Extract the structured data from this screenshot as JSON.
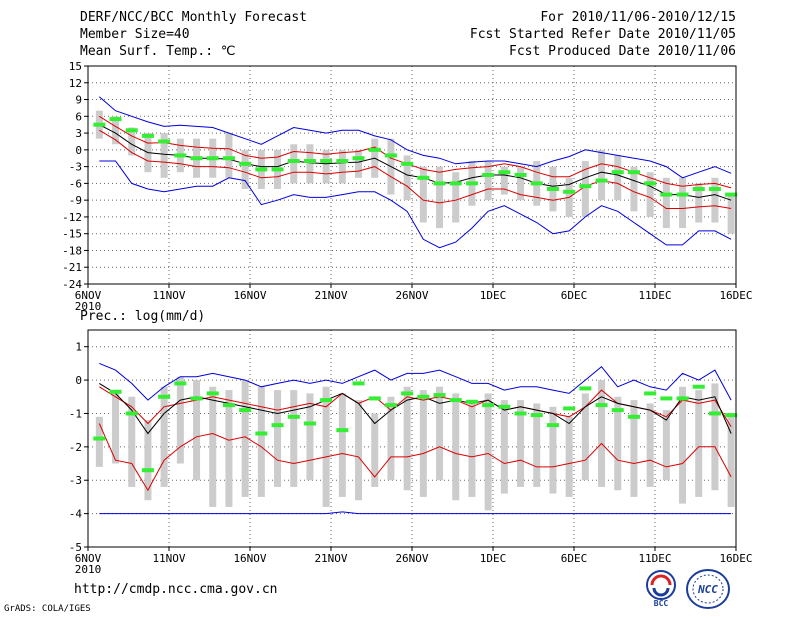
{
  "header": {
    "title": "DERF/NCC/BCC Monthly Forecast",
    "member_size": "Member Size=40",
    "variable": "Mean Surf. Temp.: ℃",
    "period": "For 2010/11/06-2010/12/15",
    "started": "Fcst Started Refer Date 2010/11/05",
    "produced": "Fcst Produced Date 2010/11/06"
  },
  "footer": {
    "url": "http://cmdp.ncc.cma.gov.cn",
    "grads": "GrADS: COLA/IGES",
    "logo_left_text": "BCC",
    "logo_right_text": "NCC"
  },
  "colors": {
    "envelope": "#0000dd",
    "spread": "#dd0000",
    "mean": "#000000",
    "box": "#cccccc",
    "median": "#33ee33",
    "grid": "#666666"
  },
  "chart_data": [
    {
      "type": "line",
      "title": "Mean Surf. Temp.: ℃",
      "ylim": [
        -24,
        15
      ],
      "yticks": [
        15,
        12,
        9,
        6,
        3,
        0,
        -3,
        -6,
        -9,
        -12,
        -15,
        -18,
        -21,
        -24
      ],
      "xlim": [
        0,
        40
      ],
      "xticks": [
        {
          "x": 0,
          "label": "6NOV",
          "sub": "2010"
        },
        {
          "x": 5,
          "label": "11NOV"
        },
        {
          "x": 10,
          "label": "16NOV"
        },
        {
          "x": 15,
          "label": "21NOV"
        },
        {
          "x": 20,
          "label": "26NOV"
        },
        {
          "x": 25,
          "label": "1DEC"
        },
        {
          "x": 30,
          "label": "6DEC"
        },
        {
          "x": 35,
          "label": "11DEC"
        },
        {
          "x": 40,
          "label": "16DEC"
        }
      ],
      "x": [
        0,
        1,
        2,
        3,
        4,
        5,
        6,
        7,
        8,
        9,
        10,
        11,
        12,
        13,
        14,
        15,
        16,
        17,
        18,
        19,
        20,
        21,
        22,
        23,
        24,
        25,
        26,
        27,
        28,
        29,
        30,
        31,
        32,
        33,
        34,
        35,
        36,
        37,
        38,
        39
      ],
      "series": [
        {
          "name": "max",
          "color": "#0000dd",
          "values": [
            9.5,
            7,
            6,
            5,
            4.2,
            4.4,
            4.2,
            4,
            3,
            2,
            1,
            2.5,
            4,
            3.5,
            3,
            3.5,
            3.5,
            2.5,
            1.8,
            0,
            -1,
            -1.5,
            -2.5,
            -2.2,
            -2,
            -2,
            -2.5,
            -3,
            -2,
            -1.2,
            0,
            -0.5,
            -1,
            -1.5,
            -2,
            -3,
            -5,
            -4,
            -3,
            -4.2
          ]
        },
        {
          "name": "spread_upper",
          "color": "#dd0000",
          "values": [
            6,
            4.2,
            2.5,
            1.2,
            1.3,
            0.8,
            0.5,
            0.3,
            0.2,
            -1,
            -1.5,
            -1.3,
            -0.3,
            -0.5,
            -0.8,
            -0.5,
            -0.3,
            0.5,
            -1.5,
            -2.5,
            -3.5,
            -4,
            -3.5,
            -3.2,
            -3,
            -2.5,
            -3,
            -4,
            -4.8,
            -4.8,
            -3.5,
            -2.5,
            -3,
            -4,
            -5,
            -6,
            -6.5,
            -6.2,
            -6,
            -6.8
          ]
        },
        {
          "name": "mean",
          "color": "#000000",
          "values": [
            4.5,
            3,
            1,
            -0.5,
            -0.8,
            -1,
            -1.5,
            -1.5,
            -1.7,
            -2.5,
            -3,
            -3,
            -2,
            -2.3,
            -2.5,
            -2.3,
            -2.2,
            -1.5,
            -3,
            -4.5,
            -5,
            -6,
            -5.8,
            -5,
            -4.5,
            -4.5,
            -5,
            -6,
            -6.5,
            -6.2,
            -5,
            -4,
            -4.5,
            -5.5,
            -6.5,
            -8,
            -8,
            -8.5,
            -8,
            -9
          ]
        },
        {
          "name": "spread_lower",
          "color": "#dd0000",
          "values": [
            3.5,
            1.8,
            -0.5,
            -2,
            -2.2,
            -2.5,
            -3,
            -3,
            -3.2,
            -4,
            -5,
            -4.8,
            -4,
            -4,
            -4.3,
            -4,
            -3.8,
            -3,
            -4.8,
            -6.5,
            -9,
            -9.5,
            -9,
            -8,
            -7,
            -7,
            -8,
            -8.5,
            -9,
            -8.5,
            -6.5,
            -5.5,
            -6,
            -7.5,
            -8.5,
            -10.5,
            -10.5,
            -10.2,
            -10,
            -10.5
          ]
        },
        {
          "name": "min",
          "color": "#0000dd",
          "values": [
            -2,
            -2,
            -6,
            -7,
            -7.5,
            -7,
            -6.5,
            -6.5,
            -5,
            -5.5,
            -9.8,
            -9,
            -8,
            -8.5,
            -8.5,
            -8,
            -7.5,
            -7.5,
            -9,
            -11,
            -16,
            -17.5,
            -16.5,
            -14,
            -11,
            -10,
            -11.5,
            -13,
            -15,
            -14.5,
            -12,
            -10,
            -11,
            -13,
            -15,
            -17,
            -17,
            -14.5,
            -14.5,
            -16
          ]
        }
      ],
      "boxes": [
        [
          2,
          7
        ],
        [
          1,
          6
        ],
        [
          -1,
          4
        ],
        [
          -4,
          3
        ],
        [
          -5,
          3
        ],
        [
          -4,
          2
        ],
        [
          -5,
          2
        ],
        [
          -5,
          2
        ],
        [
          -5,
          3
        ],
        [
          -7,
          0
        ],
        [
          -7,
          0
        ],
        [
          -7,
          0
        ],
        [
          -6,
          1
        ],
        [
          -6,
          1
        ],
        [
          -6,
          0
        ],
        [
          -6,
          0
        ],
        [
          -5,
          0
        ],
        [
          -5,
          2
        ],
        [
          -8,
          2
        ],
        [
          -9,
          -1
        ],
        [
          -13,
          -3
        ],
        [
          -14,
          -3
        ],
        [
          -13,
          -4
        ],
        [
          -10,
          -2
        ],
        [
          -9,
          -2
        ],
        [
          -8,
          -3
        ],
        [
          -9,
          -3
        ],
        [
          -10,
          -2
        ],
        [
          -11,
          -3
        ],
        [
          -12,
          -5
        ],
        [
          -12,
          -2
        ],
        [
          -9,
          0
        ],
        [
          -9,
          -1
        ],
        [
          -11,
          -3
        ],
        [
          -12,
          -4
        ],
        [
          -14,
          -5
        ],
        [
          -14,
          -5
        ],
        [
          -13,
          -6
        ],
        [
          -13,
          -5
        ],
        [
          -15,
          -8
        ]
      ],
      "medians": [
        4.5,
        5.5,
        3.5,
        2.5,
        1.5,
        -1,
        -1.5,
        -1.5,
        -1.5,
        -2.5,
        -3.5,
        -3.5,
        -2,
        -2,
        -2,
        -2,
        -1.5,
        0,
        -1,
        -2.5,
        -5,
        -6,
        -6,
        -6,
        -4.5,
        -4,
        -4.5,
        -6,
        -7,
        -7.5,
        -6.5,
        -5.5,
        -4,
        -4,
        -6,
        -8,
        -8,
        -7,
        -7,
        -8
      ]
    },
    {
      "type": "line",
      "title": "Prec.: log(mm/d)",
      "ylim": [
        -5,
        1.5
      ],
      "yticks": [
        1,
        0,
        -1,
        -2,
        -3,
        -4,
        -5
      ],
      "xlim": [
        0,
        40
      ],
      "xticks": [
        {
          "x": 0,
          "label": "6NOV",
          "sub": "2010"
        },
        {
          "x": 5,
          "label": "11NOV"
        },
        {
          "x": 10,
          "label": "16NOV"
        },
        {
          "x": 15,
          "label": "21NOV"
        },
        {
          "x": 20,
          "label": "26NOV"
        },
        {
          "x": 25,
          "label": "1DEC"
        },
        {
          "x": 30,
          "label": "6DEC"
        },
        {
          "x": 35,
          "label": "11DEC"
        },
        {
          "x": 40,
          "label": "16DEC"
        }
      ],
      "x": [
        0,
        1,
        2,
        3,
        4,
        5,
        6,
        7,
        8,
        9,
        10,
        11,
        12,
        13,
        14,
        15,
        16,
        17,
        18,
        19,
        20,
        21,
        22,
        23,
        24,
        25,
        26,
        27,
        28,
        29,
        30,
        31,
        32,
        33,
        34,
        35,
        36,
        37,
        38,
        39
      ],
      "series": [
        {
          "name": "max",
          "color": "#0000dd",
          "values": [
            0.5,
            0.3,
            -0.1,
            -0.6,
            -0.2,
            0.1,
            0.1,
            0.2,
            0.1,
            0,
            -0.2,
            -0.1,
            0,
            -0.1,
            0,
            -0.1,
            0.1,
            0.3,
            0,
            0.2,
            0.2,
            0.3,
            0.1,
            -0.1,
            -0.1,
            -0.3,
            -0.2,
            -0.2,
            -0.3,
            -0.4,
            0,
            0.4,
            -0.2,
            0,
            -0.2,
            -0.3,
            0.2,
            0,
            0.3,
            -0.6
          ]
        },
        {
          "name": "spread_upper",
          "color": "#dd0000",
          "values": [
            -0.2,
            -0.5,
            -0.8,
            -1.3,
            -0.8,
            -0.7,
            -0.6,
            -0.5,
            -0.6,
            -0.7,
            -0.8,
            -0.9,
            -0.8,
            -0.7,
            -0.8,
            -0.4,
            -0.7,
            -0.5,
            -0.9,
            -0.5,
            -0.6,
            -0.5,
            -0.6,
            -0.8,
            -0.6,
            -0.9,
            -0.8,
            -0.9,
            -1,
            -1.1,
            -0.8,
            -0.3,
            -0.7,
            -0.8,
            -0.9,
            -1.1,
            -0.6,
            -0.7,
            -0.6,
            -1.4
          ]
        },
        {
          "name": "mean",
          "color": "#000000",
          "values": [
            -0.1,
            -0.4,
            -0.9,
            -1.6,
            -1,
            -0.6,
            -0.5,
            -0.6,
            -0.7,
            -0.8,
            -0.9,
            -1,
            -0.9,
            -0.8,
            -0.6,
            -0.4,
            -0.7,
            -1.3,
            -0.9,
            -0.6,
            -0.5,
            -0.7,
            -0.6,
            -0.7,
            -0.6,
            -0.9,
            -0.8,
            -0.9,
            -1,
            -1.3,
            -0.8,
            -0.5,
            -0.7,
            -0.8,
            -0.9,
            -1.2,
            -0.5,
            -0.6,
            -0.5,
            -1.6
          ]
        },
        {
          "name": "spread_lower",
          "color": "#dd0000",
          "values": [
            -1.3,
            -2.4,
            -2.5,
            -3.3,
            -2.4,
            -2,
            -1.7,
            -1.6,
            -1.8,
            -1.7,
            -2,
            -2.4,
            -2.5,
            -2.4,
            -2.3,
            -2.2,
            -2.3,
            -2.9,
            -2.3,
            -2.3,
            -2.2,
            -2,
            -2.2,
            -2.3,
            -2.2,
            -2.5,
            -2.4,
            -2.6,
            -2.6,
            -2.5,
            -2.4,
            -1.9,
            -2.4,
            -2.5,
            -2.4,
            -2.6,
            -2.5,
            -2,
            -2,
            -2.9
          ]
        },
        {
          "name": "min",
          "color": "#0000dd",
          "values": [
            -4,
            -4,
            -4,
            -4,
            -4,
            -4,
            -4,
            -4,
            -4,
            -4,
            -4,
            -4,
            -4,
            -4,
            -4,
            -3.95,
            -4,
            -4,
            -4,
            -4,
            -4,
            -4,
            -4,
            -4,
            -4,
            -4,
            -4,
            -4,
            -4,
            -4,
            -4,
            -4,
            -4,
            -4,
            -4,
            -4,
            -4,
            -4,
            -4,
            -4
          ]
        }
      ],
      "boxes": [
        [
          -2.6,
          -1.1
        ],
        [
          -2.5,
          -0.4
        ],
        [
          -3.2,
          -0.5
        ],
        [
          -3.6,
          -1.2
        ],
        [
          -3.2,
          -0.2
        ],
        [
          -2.5,
          0.1
        ],
        [
          -3,
          0
        ],
        [
          -3.8,
          -0.2
        ],
        [
          -3.8,
          -0.3
        ],
        [
          -3.5,
          0
        ],
        [
          -3.5,
          -0.2
        ],
        [
          -3.2,
          -0.3
        ],
        [
          -3.2,
          -0.3
        ],
        [
          -3,
          -0.4
        ],
        [
          -3.8,
          -0.2
        ],
        [
          -3.5,
          -0.4
        ],
        [
          -3.6,
          -0.6
        ],
        [
          -3.2,
          -1
        ],
        [
          -3,
          -0.5
        ],
        [
          -3.3,
          -0.2
        ],
        [
          -3.5,
          -0.3
        ],
        [
          -3,
          -0.2
        ],
        [
          -3.6,
          -0.4
        ],
        [
          -3.5,
          -0.6
        ],
        [
          -3.9,
          -0.4
        ],
        [
          -3.4,
          -0.6
        ],
        [
          -3.2,
          -0.6
        ],
        [
          -3.2,
          -0.7
        ],
        [
          -3.4,
          -0.8
        ],
        [
          -3.5,
          -1.1
        ],
        [
          -3,
          -0.4
        ],
        [
          -3.2,
          0
        ],
        [
          -3.3,
          -0.5
        ],
        [
          -3.5,
          -0.6
        ],
        [
          -3.2,
          -0.7
        ],
        [
          -3,
          -0.9
        ],
        [
          -3.7,
          -0.2
        ],
        [
          -3.5,
          -0.3
        ],
        [
          -3.3,
          -0.1
        ],
        [
          -3.8,
          -1.1
        ]
      ],
      "medians": [
        -1.75,
        -0.35,
        -1,
        -2.7,
        -0.5,
        -0.1,
        -0.55,
        -0.4,
        -0.75,
        -0.9,
        -1.6,
        -1.35,
        -1.1,
        -1.3,
        -0.6,
        -1.5,
        -0.1,
        -0.55,
        -0.75,
        -0.4,
        -0.5,
        -0.45,
        -0.6,
        -0.65,
        -0.75,
        -0.8,
        -1,
        -1.05,
        -1.35,
        -0.85,
        -0.25,
        -0.75,
        -0.9,
        -1.1,
        -0.4,
        -0.55,
        -0.55,
        -0.2,
        -1,
        -1.05
      ]
    }
  ]
}
